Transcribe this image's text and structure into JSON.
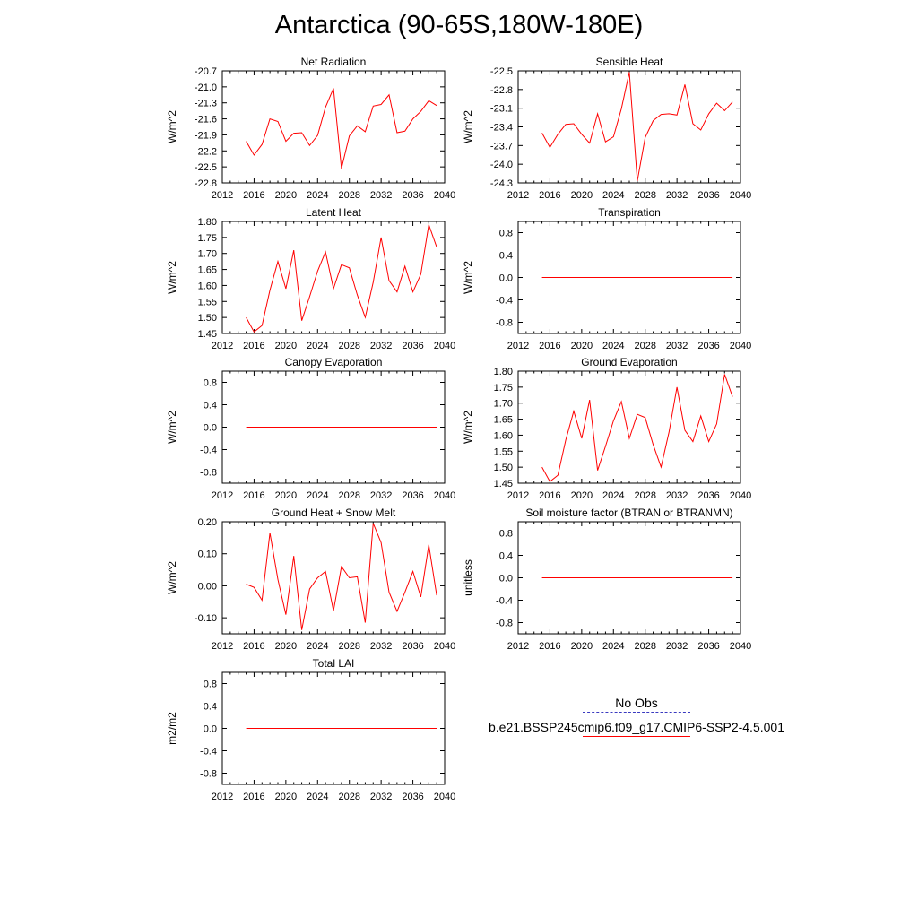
{
  "title": "Antarctica (90-65S,180W-180E)",
  "legend": {
    "obs_label": "No Obs",
    "obs_color": "#3a3ac0",
    "model_label": "b.e21.BSSP245cmip6.f09_g17.CMIP6-SSP2-4.5.001",
    "model_color": "#ff0000"
  },
  "chart_data": [
    {
      "type": "line",
      "title": "Net Radiation",
      "ylabel": "W/m^2",
      "xlim": [
        2012,
        2040
      ],
      "xticks": [
        2012,
        2016,
        2020,
        2024,
        2028,
        2032,
        2036,
        2040
      ],
      "ylim": [
        -22.8,
        -20.7
      ],
      "yticks": [
        -20.7,
        -21.0,
        -21.3,
        -21.6,
        -21.9,
        -22.2,
        -22.5,
        -22.8
      ],
      "ytick_labels": [
        "-20.7",
        "-21.0",
        "-21.3",
        "-21.6",
        "-21.9",
        "-22.2",
        "-22.5",
        "-22.8"
      ],
      "series": [
        {
          "color": "#ff0000",
          "x": [
            2015,
            2016,
            2017,
            2018,
            2019,
            2020,
            2021,
            2022,
            2023,
            2024,
            2025,
            2026,
            2027,
            2028,
            2029,
            2030,
            2031,
            2032,
            2033,
            2034,
            2035,
            2036,
            2037,
            2038,
            2039
          ],
          "y": [
            -22.02,
            -22.28,
            -22.08,
            -21.6,
            -21.65,
            -22.02,
            -21.87,
            -21.86,
            -22.1,
            -21.91,
            -21.38,
            -21.03,
            -22.53,
            -21.92,
            -21.73,
            -21.84,
            -21.36,
            -21.33,
            -21.15,
            -21.86,
            -21.83,
            -21.6,
            -21.46,
            -21.26,
            -21.35
          ]
        }
      ]
    },
    {
      "type": "line",
      "title": "Sensible Heat",
      "ylabel": "W/m^2",
      "xlim": [
        2012,
        2040
      ],
      "xticks": [
        2012,
        2016,
        2020,
        2024,
        2028,
        2032,
        2036,
        2040
      ],
      "ylim": [
        -24.3,
        -22.5
      ],
      "yticks": [
        -22.5,
        -22.8,
        -23.1,
        -23.4,
        -23.7,
        -24.0,
        -24.3
      ],
      "ytick_labels": [
        "-22.5",
        "-22.8",
        "-23.1",
        "-23.4",
        "-23.7",
        "-24.0",
        "-24.3"
      ],
      "series": [
        {
          "color": "#ff0000",
          "x": [
            2015,
            2016,
            2017,
            2018,
            2019,
            2020,
            2021,
            2022,
            2023,
            2024,
            2025,
            2026,
            2027,
            2028,
            2029,
            2030,
            2031,
            2032,
            2033,
            2034,
            2035,
            2036,
            2037,
            2038,
            2039
          ],
          "y": [
            -23.5,
            -23.73,
            -23.52,
            -23.36,
            -23.35,
            -23.52,
            -23.66,
            -23.19,
            -23.64,
            -23.56,
            -23.11,
            -22.52,
            -24.27,
            -23.57,
            -23.3,
            -23.2,
            -23.19,
            -23.21,
            -22.72,
            -23.35,
            -23.45,
            -23.19,
            -23.02,
            -23.14,
            -23.0
          ]
        }
      ]
    },
    {
      "type": "line",
      "title": "Latent Heat",
      "ylabel": "W/m^2",
      "xlim": [
        2012,
        2040
      ],
      "xticks": [
        2012,
        2016,
        2020,
        2024,
        2028,
        2032,
        2036,
        2040
      ],
      "ylim": [
        1.45,
        1.8
      ],
      "yticks": [
        1.45,
        1.5,
        1.55,
        1.6,
        1.65,
        1.7,
        1.75,
        1.8
      ],
      "ytick_labels": [
        "1.45",
        "1.50",
        "1.55",
        "1.60",
        "1.65",
        "1.70",
        "1.75",
        "1.80"
      ],
      "series": [
        {
          "color": "#ff0000",
          "x": [
            2015,
            2016,
            2017,
            2018,
            2019,
            2020,
            2021,
            2022,
            2023,
            2024,
            2025,
            2026,
            2027,
            2028,
            2029,
            2030,
            2031,
            2032,
            2033,
            2034,
            2035,
            2036,
            2037,
            2038,
            2039
          ],
          "y": [
            1.5,
            1.455,
            1.475,
            1.585,
            1.675,
            1.59,
            1.71,
            1.49,
            1.565,
            1.645,
            1.705,
            1.59,
            1.665,
            1.655,
            1.57,
            1.5,
            1.61,
            1.75,
            1.615,
            1.58,
            1.66,
            1.58,
            1.635,
            1.79,
            1.72
          ]
        }
      ]
    },
    {
      "type": "line",
      "title": "Transpiration",
      "ylabel": "W/m^2",
      "xlim": [
        2012,
        2040
      ],
      "xticks": [
        2012,
        2016,
        2020,
        2024,
        2028,
        2032,
        2036,
        2040
      ],
      "ylim": [
        -1.0,
        1.0
      ],
      "yticks": [
        0.8,
        0.4,
        0.0,
        -0.4,
        -0.8
      ],
      "ytick_labels": [
        "0.8",
        "0.4",
        "0.0",
        "-0.4",
        "-0.8"
      ],
      "series": [
        {
          "color": "#ff0000",
          "x": [
            2015,
            2039
          ],
          "y": [
            0.0,
            0.0
          ]
        }
      ]
    },
    {
      "type": "line",
      "title": "Canopy Evaporation",
      "ylabel": "W/m^2",
      "xlim": [
        2012,
        2040
      ],
      "xticks": [
        2012,
        2016,
        2020,
        2024,
        2028,
        2032,
        2036,
        2040
      ],
      "ylim": [
        -1.0,
        1.0
      ],
      "yticks": [
        0.8,
        0.4,
        0.0,
        -0.4,
        -0.8
      ],
      "ytick_labels": [
        "0.8",
        "0.4",
        "0.0",
        "-0.4",
        "-0.8"
      ],
      "series": [
        {
          "color": "#ff0000",
          "x": [
            2015,
            2039
          ],
          "y": [
            0.0,
            0.0
          ]
        }
      ]
    },
    {
      "type": "line",
      "title": "Ground Evaporation",
      "ylabel": "W/m^2",
      "xlim": [
        2012,
        2040
      ],
      "xticks": [
        2012,
        2016,
        2020,
        2024,
        2028,
        2032,
        2036,
        2040
      ],
      "ylim": [
        1.45,
        1.8
      ],
      "yticks": [
        1.45,
        1.5,
        1.55,
        1.6,
        1.65,
        1.7,
        1.75,
        1.8
      ],
      "ytick_labels": [
        "1.45",
        "1.50",
        "1.55",
        "1.60",
        "1.65",
        "1.70",
        "1.75",
        "1.80"
      ],
      "series": [
        {
          "color": "#ff0000",
          "x": [
            2015,
            2016,
            2017,
            2018,
            2019,
            2020,
            2021,
            2022,
            2023,
            2024,
            2025,
            2026,
            2027,
            2028,
            2029,
            2030,
            2031,
            2032,
            2033,
            2034,
            2035,
            2036,
            2037,
            2038,
            2039
          ],
          "y": [
            1.5,
            1.455,
            1.475,
            1.585,
            1.675,
            1.59,
            1.71,
            1.49,
            1.565,
            1.645,
            1.705,
            1.59,
            1.665,
            1.655,
            1.57,
            1.5,
            1.61,
            1.75,
            1.615,
            1.58,
            1.66,
            1.58,
            1.635,
            1.79,
            1.72
          ]
        }
      ]
    },
    {
      "type": "line",
      "title": "Ground Heat + Snow Melt",
      "ylabel": "W/m^2",
      "xlim": [
        2012,
        2040
      ],
      "xticks": [
        2012,
        2016,
        2020,
        2024,
        2028,
        2032,
        2036,
        2040
      ],
      "ylim": [
        -0.15,
        0.2
      ],
      "yticks": [
        0.2,
        0.1,
        0.0,
        -0.1
      ],
      "ytick_labels": [
        "0.20",
        "0.10",
        "0.00",
        "-0.10"
      ],
      "series": [
        {
          "color": "#ff0000",
          "x": [
            2015,
            2016,
            2017,
            2018,
            2019,
            2020,
            2021,
            2022,
            2023,
            2024,
            2025,
            2026,
            2027,
            2028,
            2029,
            2030,
            2031,
            2032,
            2033,
            2034,
            2035,
            2036,
            2037,
            2038,
            2039
          ],
          "y": [
            0.005,
            -0.005,
            -0.045,
            0.165,
            0.02,
            -0.09,
            0.093,
            -0.138,
            -0.01,
            0.025,
            0.045,
            -0.078,
            0.06,
            0.025,
            0.028,
            -0.115,
            0.195,
            0.135,
            -0.02,
            -0.08,
            -0.02,
            0.045,
            -0.035,
            0.128,
            -0.03
          ]
        }
      ]
    },
    {
      "type": "line",
      "title": "Soil moisture factor (BTRAN or BTRANMN)",
      "ylabel": "unitless",
      "xlim": [
        2012,
        2040
      ],
      "xticks": [
        2012,
        2016,
        2020,
        2024,
        2028,
        2032,
        2036,
        2040
      ],
      "ylim": [
        -1.0,
        1.0
      ],
      "yticks": [
        0.8,
        0.4,
        0.0,
        -0.4,
        -0.8
      ],
      "ytick_labels": [
        "0.8",
        "0.4",
        "0.0",
        "-0.4",
        "-0.8"
      ],
      "series": [
        {
          "color": "#ff0000",
          "x": [
            2015,
            2039
          ],
          "y": [
            0.0,
            0.0
          ]
        }
      ]
    },
    {
      "type": "line",
      "title": "Total LAI",
      "ylabel": "m2/m2",
      "xlim": [
        2012,
        2040
      ],
      "xticks": [
        2012,
        2016,
        2020,
        2024,
        2028,
        2032,
        2036,
        2040
      ],
      "ylim": [
        -1.0,
        1.0
      ],
      "yticks": [
        0.8,
        0.4,
        0.0,
        -0.4,
        -0.8
      ],
      "ytick_labels": [
        "0.8",
        "0.4",
        "0.0",
        "-0.4",
        "-0.8"
      ],
      "series": [
        {
          "color": "#ff0000",
          "x": [
            2015,
            2039
          ],
          "y": [
            0.0,
            0.0
          ]
        }
      ]
    }
  ]
}
